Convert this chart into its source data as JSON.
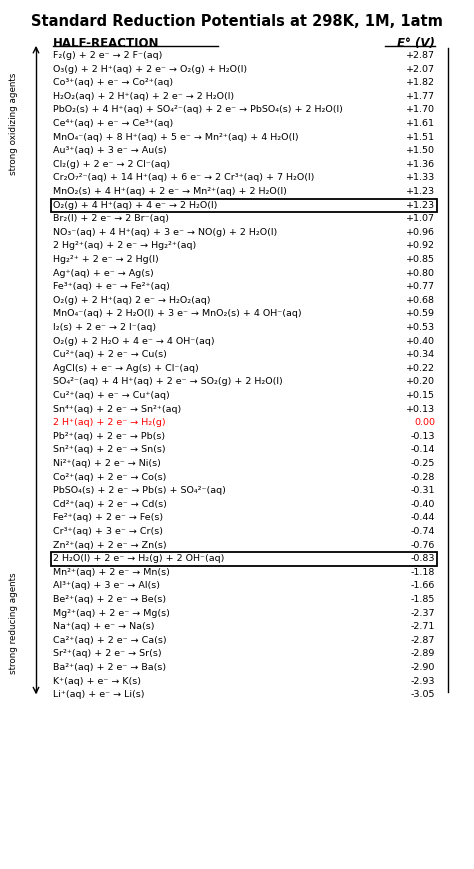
{
  "title": "Standard Reduction Potentials at 298K, 1M, 1atm",
  "col1_header": "HALF-REACTION",
  "col2_header": "E° (V)",
  "rows": [
    [
      "F₂(g) + 2 e⁻ → 2 F⁻(aq)",
      "+2.87",
      false
    ],
    [
      "O₃(g) + 2 H⁺(aq) + 2 e⁻ → O₂(g) + H₂O(l)",
      "+2.07",
      false
    ],
    [
      "Co³⁺(aq) + e⁻ → Co²⁺(aq)",
      "+1.82",
      false
    ],
    [
      "H₂O₂(aq) + 2 H⁺(aq) + 2 e⁻ → 2 H₂O(l)",
      "+1.77",
      false
    ],
    [
      "PbO₂(s) + 4 H⁺(aq) + SO₄²⁻(aq) + 2 e⁻ → PbSO₄(s) + 2 H₂O(l)",
      "+1.70",
      false
    ],
    [
      "Ce⁴⁺(aq) + e⁻ → Ce³⁺(aq)",
      "+1.61",
      false
    ],
    [
      "MnO₄⁻(aq) + 8 H⁺(aq) + 5 e⁻ → Mn²⁺(aq) + 4 H₂O(l)",
      "+1.51",
      false
    ],
    [
      "Au³⁺(aq) + 3 e⁻ → Au(s)",
      "+1.50",
      false
    ],
    [
      "Cl₂(g) + 2 e⁻ → 2 Cl⁻(aq)",
      "+1.36",
      false
    ],
    [
      "Cr₂O₇²⁻(aq) + 14 H⁺(aq) + 6 e⁻ → 2 Cr³⁺(aq) + 7 H₂O(l)",
      "+1.33",
      false
    ],
    [
      "MnO₂(s) + 4 H⁺(aq) + 2 e⁻ → Mn²⁺(aq) + 2 H₂O(l)",
      "+1.23",
      false
    ],
    [
      "O₂(g) + 4 H⁺(aq) + 4 e⁻ → 2 H₂O(l)",
      "+1.23",
      true
    ],
    [
      "Br₂(l) + 2 e⁻ → 2 Br⁻(aq)",
      "+1.07",
      false
    ],
    [
      "NO₃⁻(aq) + 4 H⁺(aq) + 3 e⁻ → NO(g) + 2 H₂O(l)",
      "+0.96",
      false
    ],
    [
      "2 Hg²⁺(aq) + 2 e⁻ → Hg₂²⁺(aq)",
      "+0.92",
      false
    ],
    [
      "Hg₂²⁺ + 2 e⁻ → 2 Hg(l)",
      "+0.85",
      false
    ],
    [
      "Ag⁺(aq) + e⁻ → Ag(s)",
      "+0.80",
      false
    ],
    [
      "Fe³⁺(aq) + e⁻ → Fe²⁺(aq)",
      "+0.77",
      false
    ],
    [
      "O₂(g) + 2 H⁺(aq) 2 e⁻ → H₂O₂(aq)",
      "+0.68",
      false
    ],
    [
      "MnO₄⁻(aq) + 2 H₂O(l) + 3 e⁻ → MnO₂(s) + 4 OH⁻(aq)",
      "+0.59",
      false
    ],
    [
      "I₂(s) + 2 e⁻ → 2 I⁻(aq)",
      "+0.53",
      false
    ],
    [
      "O₂(g) + 2 H₂O + 4 e⁻ → 4 OH⁻(aq)",
      "+0.40",
      false
    ],
    [
      "Cu²⁺(aq) + 2 e⁻ → Cu(s)",
      "+0.34",
      false
    ],
    [
      "AgCl(s) + e⁻ → Ag(s) + Cl⁻(aq)",
      "+0.22",
      false
    ],
    [
      "SO₄²⁻(aq) + 4 H⁺(aq) + 2 e⁻ → SO₂(g) + 2 H₂O(l)",
      "+0.20",
      false
    ],
    [
      "Cu²⁺(aq) + e⁻ → Cu⁺(aq)",
      "+0.15",
      false
    ],
    [
      "Sn⁴⁺(aq) + 2 e⁻ → Sn²⁺(aq)",
      "+0.13",
      false
    ],
    [
      "2 H⁺(aq) + 2 e⁻ → H₂(g)",
      "0.00",
      false
    ],
    [
      "Pb²⁺(aq) + 2 e⁻ → Pb(s)",
      "-0.13",
      false
    ],
    [
      "Sn²⁺(aq) + 2 e⁻ → Sn(s)",
      "-0.14",
      false
    ],
    [
      "Ni²⁺(aq) + 2 e⁻ → Ni(s)",
      "-0.25",
      false
    ],
    [
      "Co²⁺(aq) + 2 e⁻ → Co(s)",
      "-0.28",
      false
    ],
    [
      "PbSO₄(s) + 2 e⁻ → Pb(s) + SO₄²⁻(aq)",
      "-0.31",
      false
    ],
    [
      "Cd²⁺(aq) + 2 e⁻ → Cd(s)",
      "-0.40",
      false
    ],
    [
      "Fe²⁺(aq) + 2 e⁻ → Fe(s)",
      "-0.44",
      false
    ],
    [
      "Cr³⁺(aq) + 3 e⁻ → Cr(s)",
      "-0.74",
      false
    ],
    [
      "Zn²⁺(aq) + 2 e⁻ → Zn(s)",
      "-0.76",
      false
    ],
    [
      "2 H₂O(l) + 2 e⁻ → H₂(g) + 2 OH⁻(aq)",
      "-0.83",
      true
    ],
    [
      "Mn²⁺(aq) + 2 e⁻ → Mn(s)",
      "-1.18",
      false
    ],
    [
      "Al³⁺(aq) + 3 e⁻ → Al(s)",
      "-1.66",
      false
    ],
    [
      "Be²⁺(aq) + 2 e⁻ → Be(s)",
      "-1.85",
      false
    ],
    [
      "Mg²⁺(aq) + 2 e⁻ → Mg(s)",
      "-2.37",
      false
    ],
    [
      "Na⁺(aq) + e⁻ → Na(s)",
      "-2.71",
      false
    ],
    [
      "Ca²⁺(aq) + 2 e⁻ → Ca(s)",
      "-2.87",
      false
    ],
    [
      "Sr²⁺(aq) + 2 e⁻ → Sr(s)",
      "-2.89",
      false
    ],
    [
      "Ba²⁺(aq) + 2 e⁻ → Ba(s)",
      "-2.90",
      false
    ],
    [
      "K⁺(aq) + e⁻ → K(s)",
      "-2.93",
      false
    ],
    [
      "Li⁺(aq) + e⁻ → Li(s)",
      "-3.05",
      false
    ]
  ],
  "bg_color": "#ffffff",
  "text_color": "#000000",
  "zero_color": "#ff0000",
  "side_label_top": "strong oxidizing agents",
  "side_label_bottom": "strong reducing agents"
}
